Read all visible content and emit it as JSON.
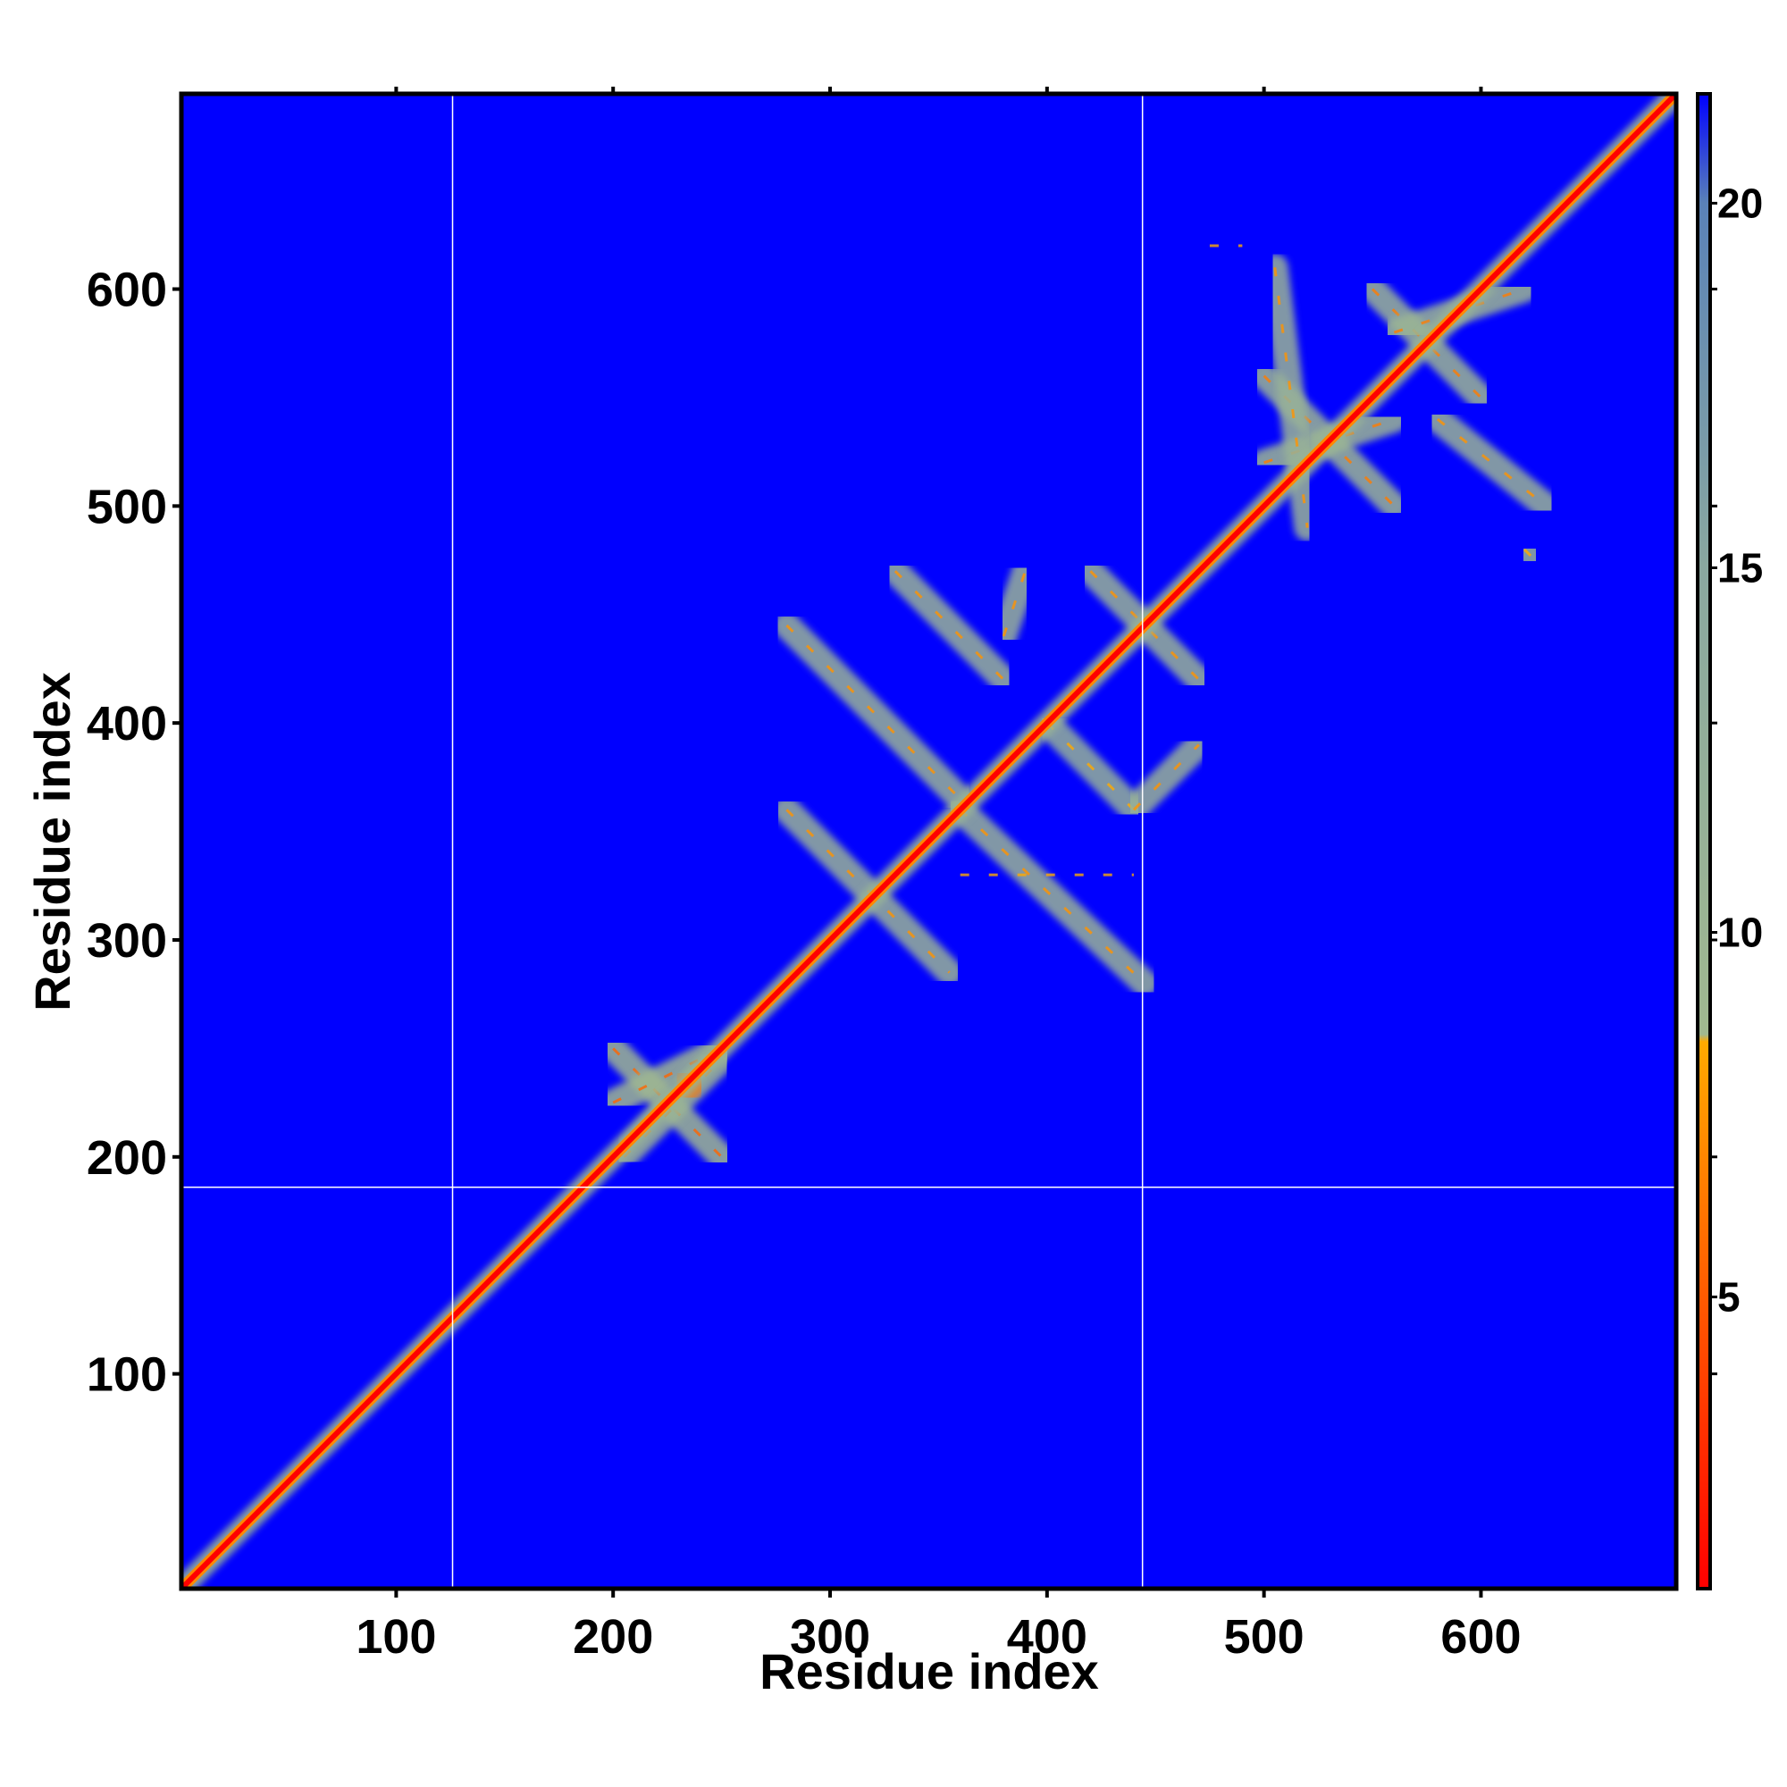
{
  "chart_data": {
    "type": "heatmap",
    "title": "",
    "xlabel": "Residue index",
    "ylabel": "Residue index",
    "xlim": [
      1,
      690
    ],
    "ylim": [
      1,
      690
    ],
    "x_ticks": [
      100,
      200,
      300,
      400,
      500,
      600
    ],
    "y_ticks": [
      100,
      200,
      300,
      400,
      500,
      600
    ],
    "colorbar": {
      "range": [
        1,
        21.5
      ],
      "ticks": [
        5,
        10,
        15,
        20
      ],
      "stops": [
        {
          "value": 1,
          "color": "#ff0000"
        },
        {
          "value": 5,
          "color": "#ff5a00"
        },
        {
          "value": 8.5,
          "color": "#ffaa00"
        },
        {
          "value": 8.6,
          "color": "#a0b890"
        },
        {
          "value": 15,
          "color": "#8aa8a0"
        },
        {
          "value": 20,
          "color": "#5a82b8"
        },
        {
          "value": 21.5,
          "color": "#0000ff"
        }
      ]
    },
    "background_value": 21.5,
    "divider_lines": {
      "x": [
        126,
        444
      ],
      "y": [
        186
      ]
    },
    "diagonal": {
      "from": 1,
      "to": 690
    },
    "contact_segments": [
      {
        "from": [
          200,
          250
        ],
        "to": [
          250,
          200
        ],
        "value": 9
      },
      {
        "from": [
          200,
          225
        ],
        "to": [
          250,
          250
        ],
        "value": 9
      },
      {
        "from": [
          205,
          200
        ],
        "to": [
          250,
          245
        ],
        "value": 10
      },
      {
        "from": [
          230,
          228
        ],
        "to": [
          240,
          238
        ],
        "value": 6
      },
      {
        "from": [
          280,
          445
        ],
        "to": [
          360,
          365
        ],
        "value": 11
      },
      {
        "from": [
          280,
          360
        ],
        "to": [
          355,
          285
        ],
        "value": 11
      },
      {
        "from": [
          330,
          470
        ],
        "to": [
          380,
          420
        ],
        "value": 11
      },
      {
        "from": [
          360,
          360
        ],
        "to": [
          445,
          280
        ],
        "value": 11
      },
      {
        "from": [
          380,
          440
        ],
        "to": [
          390,
          470
        ],
        "value": 11
      },
      {
        "from": [
          420,
          470
        ],
        "to": [
          470,
          420
        ],
        "value": 11
      },
      {
        "from": [
          400,
          400
        ],
        "to": [
          440,
          360
        ],
        "value": 12
      },
      {
        "from": [
          440,
          360
        ],
        "to": [
          470,
          390
        ],
        "value": 11
      },
      {
        "from": [
          360,
          330
        ],
        "to": [
          440,
          330
        ],
        "value": 12
      },
      {
        "from": [
          500,
          560
        ],
        "to": [
          560,
          500
        ],
        "value": 10
      },
      {
        "from": [
          500,
          520
        ],
        "to": [
          560,
          540
        ],
        "value": 10
      },
      {
        "from": [
          505,
          610
        ],
        "to": [
          520,
          490
        ],
        "value": 11
      },
      {
        "from": [
          550,
          600
        ],
        "to": [
          600,
          550
        ],
        "value": 10
      },
      {
        "from": [
          560,
          580
        ],
        "to": [
          620,
          600
        ],
        "value": 10
      },
      {
        "from": [
          580,
          540
        ],
        "to": [
          630,
          500
        ],
        "value": 11
      },
      {
        "from": [
          475,
          620
        ],
        "to": [
          490,
          620
        ],
        "value": 12
      },
      {
        "from": [
          620,
          480
        ],
        "to": [
          625,
          475
        ],
        "value": 12
      }
    ]
  }
}
